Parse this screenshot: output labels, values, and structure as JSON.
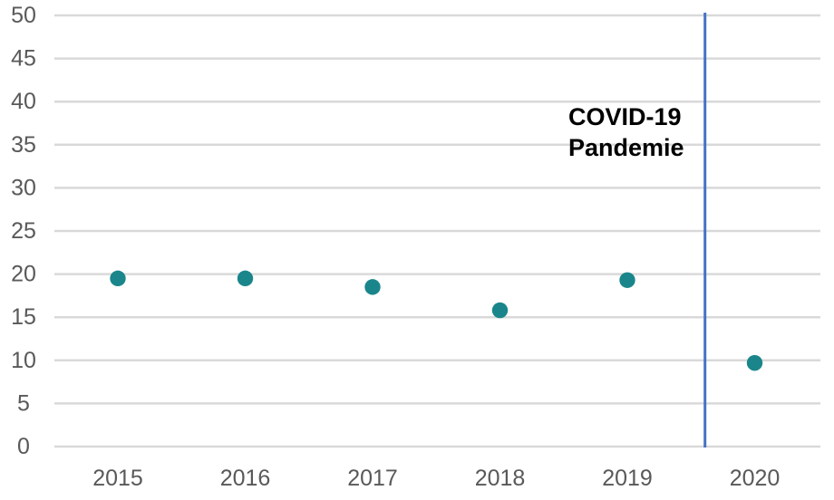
{
  "chart_data": {
    "type": "scatter",
    "title": "",
    "xlabel": "",
    "ylabel": "",
    "categories": [
      "2015",
      "2016",
      "2017",
      "2018",
      "2019",
      "2020"
    ],
    "values": [
      19.5,
      19.5,
      18.5,
      15.8,
      19.3,
      9.7
    ],
    "ylim": [
      0,
      50
    ],
    "yticks": [
      0,
      5,
      10,
      15,
      20,
      25,
      30,
      35,
      40,
      45,
      50
    ],
    "grid": true,
    "legend": "none",
    "vline": {
      "x_index": 4.61,
      "note": "vertical reference line between 2019 and 2020"
    },
    "annotation": {
      "line1": "COVID-19",
      "line2": "Pandemie"
    },
    "colors": {
      "dot": "#1a868b",
      "vline": "#4472c4",
      "gridline": "#d9d9d9",
      "tick_label": "#595959",
      "annotation": "#000000",
      "background": "#ffffff"
    }
  }
}
